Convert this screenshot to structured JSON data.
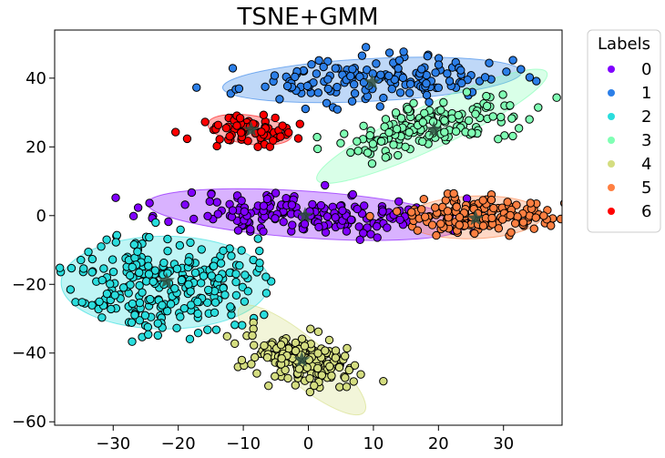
{
  "chart_data": {
    "type": "scatter",
    "title": "TSNE+GMM",
    "xlabel": "",
    "ylabel": "",
    "xlim": [
      -39,
      39
    ],
    "ylim": [
      -61,
      54
    ],
    "xticks": [
      -30,
      -20,
      -10,
      0,
      10,
      20,
      30
    ],
    "yticks": [
      -60,
      -40,
      -20,
      0,
      20,
      40
    ],
    "grid": false,
    "legend": {
      "title": "Labels",
      "placement": "outside-right"
    },
    "clusters": [
      {
        "label": "0",
        "color": "#8000ff",
        "center": [
          -0.3,
          0.3
        ],
        "std": [
          10.5,
          3.2
        ],
        "rot": -4,
        "ellipse": {
          "w": 24.5,
          "h": 6.8,
          "angle": -4
        },
        "n": 180,
        "seed": 11,
        "marker_center": [
          -0.5,
          0
        ]
      },
      {
        "label": "1",
        "color": "#2c7fe8",
        "center": [
          9.8,
          39.5
        ],
        "std": [
          10.0,
          3.1
        ],
        "rot": 3,
        "ellipse": {
          "w": 23,
          "h": 6.2,
          "angle": 3
        },
        "n": 160,
        "seed": 23,
        "marker_center": [
          9.8,
          38.8
        ]
      },
      {
        "label": "2",
        "color": "#2adddd",
        "center": [
          -22,
          -19.5
        ],
        "std": [
          6.8,
          7.2
        ],
        "rot": 0,
        "ellipse": {
          "w": 16,
          "h": 13.5,
          "angle": 0
        },
        "n": 260,
        "seed": 37,
        "marker_center": [
          -21.8,
          -19
        ]
      },
      {
        "label": "3",
        "color": "#80ffb4",
        "center": [
          19,
          26
        ],
        "std": [
          8.0,
          3.0
        ],
        "rot": 24,
        "ellipse": {
          "w": 19.5,
          "h": 6.3,
          "angle": 25
        },
        "n": 160,
        "seed": 41,
        "marker_center": [
          19.3,
          25
        ]
      },
      {
        "label": "4",
        "color": "#d4dd80",
        "center": [
          -1,
          -42
        ],
        "std": [
          5.0,
          3.2
        ],
        "rot": -38,
        "ellipse": {
          "w": 12.5,
          "h": 6.5,
          "angle": -40
        },
        "n": 200,
        "seed": 53,
        "marker_center": [
          -1,
          -42
        ]
      },
      {
        "label": "5",
        "color": "#ff7f41",
        "center": [
          25.5,
          -0.5
        ],
        "std": [
          5.5,
          2.6
        ],
        "rot": 0,
        "ellipse": {
          "w": 10.5,
          "h": 6.2,
          "angle": 2
        },
        "n": 150,
        "seed": 67,
        "marker_center": [
          25.7,
          -0.8
        ]
      },
      {
        "label": "6",
        "color": "#ff0000",
        "center": [
          -9,
          25
        ],
        "std": [
          3.6,
          2.2
        ],
        "rot": -8,
        "ellipse": {
          "w": 6.5,
          "h": 4.2,
          "angle": -8
        },
        "n": 70,
        "seed": 79,
        "marker_center": [
          -8.8,
          25
        ]
      }
    ]
  }
}
